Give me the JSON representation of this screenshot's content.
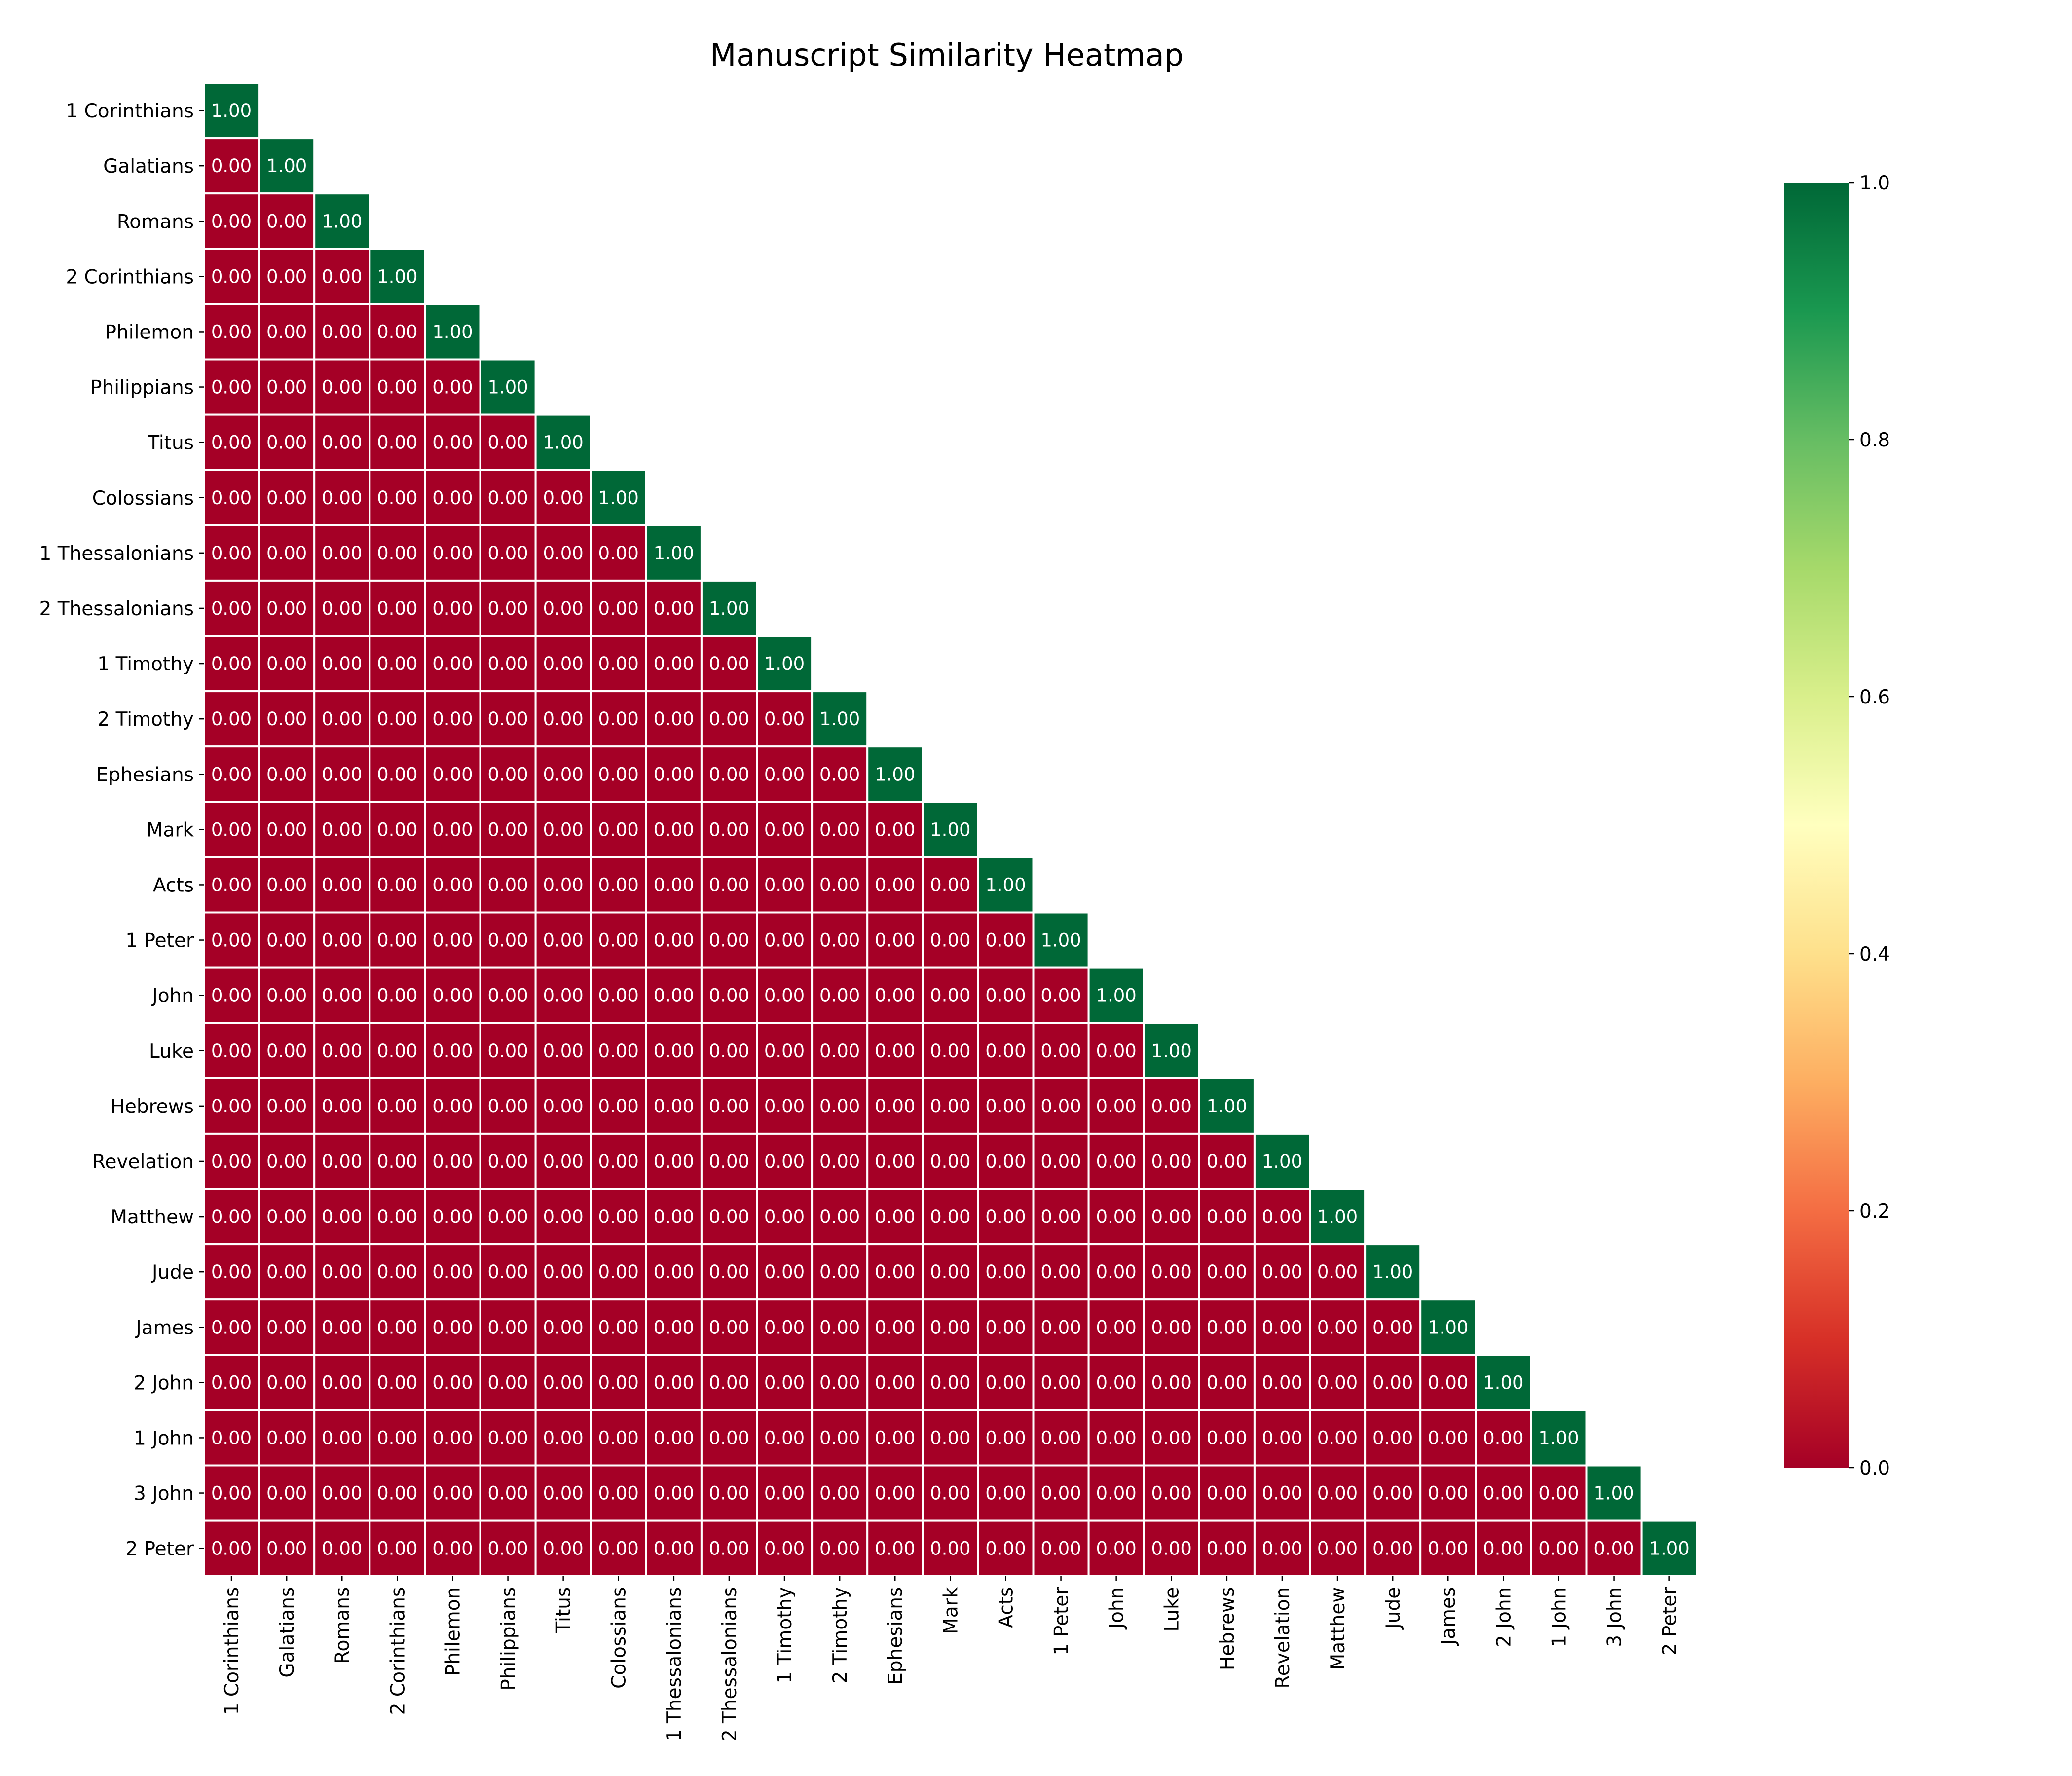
{
  "chart_data": {
    "type": "heatmap",
    "title": "Manuscript Similarity Heatmap",
    "labels": [
      "1 Corinthians",
      "Galatians",
      "Romans",
      "2 Corinthians",
      "Philemon",
      "Philippians",
      "Titus",
      "Colossians",
      "1 Thessalonians",
      "2 Thessalonians",
      "1 Timothy",
      "2 Timothy",
      "Ephesians",
      "Mark",
      "Acts",
      "1 Peter",
      "John",
      "Luke",
      "Hebrews",
      "Revelation",
      "Matthew",
      "Jude",
      "James",
      "2 John",
      "1 John",
      "3 John",
      "2 Peter"
    ],
    "matrix_shape": "lower-triangle",
    "diagonal_value": 1.0,
    "off_diagonal_value": 0.0,
    "value_format": "0.00",
    "colormap": "RdYlGn",
    "color_stops": [
      "#a50026",
      "#d73027",
      "#f46d43",
      "#fdae61",
      "#fee08b",
      "#ffffbf",
      "#d9ef8b",
      "#a6d96a",
      "#66bd63",
      "#1a9850",
      "#006837"
    ],
    "vmin": 0.0,
    "vmax": 1.0,
    "colorbar_ticks": [
      "0.0",
      "0.2",
      "0.4",
      "0.6",
      "0.8",
      "1.0"
    ],
    "colorbar_position": "right"
  }
}
